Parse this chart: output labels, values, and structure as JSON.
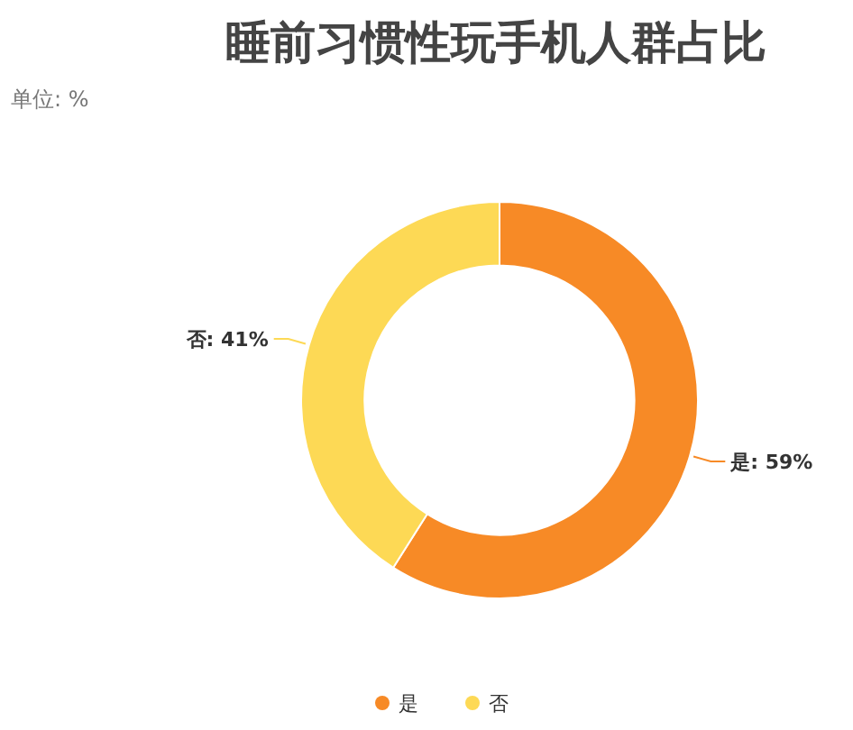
{
  "chart_data": {
    "type": "donut",
    "title": "睡前习惯性玩手机人群占比",
    "subtitle": "单位: %",
    "categories": [
      "是",
      "否"
    ],
    "values": [
      59,
      41
    ],
    "value_labels": [
      "是: 59%",
      "否: 41%"
    ],
    "colors": [
      "#f78a26",
      "#fdd955"
    ],
    "legend": "bottom"
  }
}
